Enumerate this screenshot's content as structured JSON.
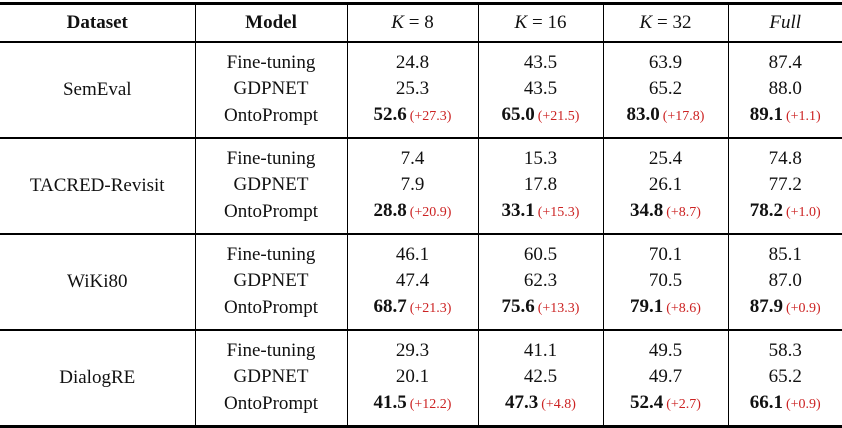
{
  "colors": {
    "delta_text": "#cc2222",
    "text": "#111111",
    "rule": "#000000",
    "background": "#ffffff"
  },
  "table": {
    "columns": [
      {
        "label": "Dataset"
      },
      {
        "label": "Model"
      },
      {
        "symbol": "K",
        "suffix": " = 8"
      },
      {
        "symbol": "K",
        "suffix": " = 16"
      },
      {
        "symbol": "K",
        "suffix": " = 32"
      },
      {
        "label": "Full"
      }
    ],
    "groups": [
      {
        "dataset": "SemEval",
        "rows": [
          {
            "model": "Fine-tuning",
            "v": [
              "24.8",
              "43.5",
              "63.9",
              "87.4"
            ]
          },
          {
            "model": "GDPNET",
            "v": [
              "25.3",
              "43.5",
              "65.2",
              "88.0"
            ]
          },
          {
            "model": "OntoPrompt",
            "v": [
              "52.6",
              "65.0",
              "83.0",
              "89.1"
            ],
            "d": [
              "(+27.3)",
              "(+21.5)",
              "(+17.8)",
              "(+1.1)"
            ]
          }
        ]
      },
      {
        "dataset": "TACRED-Revisit",
        "rows": [
          {
            "model": "Fine-tuning",
            "v": [
              "7.4",
              "15.3",
              "25.4",
              "74.8"
            ]
          },
          {
            "model": "GDPNET",
            "v": [
              "7.9",
              "17.8",
              "26.1",
              "77.2"
            ]
          },
          {
            "model": "OntoPrompt",
            "v": [
              "28.8",
              "33.1",
              "34.8",
              "78.2"
            ],
            "d": [
              "(+20.9)",
              "(+15.3)",
              "(+8.7)",
              "(+1.0)"
            ]
          }
        ]
      },
      {
        "dataset": "WiKi80",
        "rows": [
          {
            "model": "Fine-tuning",
            "v": [
              "46.1",
              "60.5",
              "70.1",
              "85.1"
            ]
          },
          {
            "model": "GDPNET",
            "v": [
              "47.4",
              "62.3",
              "70.5",
              "87.0"
            ]
          },
          {
            "model": "OntoPrompt",
            "v": [
              "68.7",
              "75.6",
              "79.1",
              "87.9"
            ],
            "d": [
              "(+21.3)",
              "(+13.3)",
              "(+8.6)",
              "(+0.9)"
            ]
          }
        ]
      },
      {
        "dataset": "DialogRE",
        "rows": [
          {
            "model": "Fine-tuning",
            "v": [
              "29.3",
              "41.1",
              "49.5",
              "58.3"
            ]
          },
          {
            "model": "GDPNET",
            "v": [
              "20.1",
              "42.5",
              "49.7",
              "65.2"
            ]
          },
          {
            "model": "OntoPrompt",
            "v": [
              "41.5",
              "47.3",
              "52.4",
              "66.1"
            ],
            "d": [
              "(+12.2)",
              "(+4.8)",
              "(+2.7)",
              "(+0.9)"
            ]
          }
        ]
      }
    ]
  },
  "chart_data": {
    "type": "table",
    "columns": [
      "Dataset",
      "Model",
      "K = 8",
      "K = 16",
      "K = 32",
      "Full"
    ],
    "rows": [
      [
        "SemEval",
        "Fine-tuning",
        "24.8",
        "43.5",
        "63.9",
        "87.4"
      ],
      [
        "SemEval",
        "GDPNET",
        "25.3",
        "43.5",
        "65.2",
        "88.0"
      ],
      [
        "SemEval",
        "OntoPrompt",
        "52.6 (+27.3)",
        "65.0 (+21.5)",
        "83.0 (+17.8)",
        "89.1 (+1.1)"
      ],
      [
        "TACRED-Revisit",
        "Fine-tuning",
        "7.4",
        "15.3",
        "25.4",
        "74.8"
      ],
      [
        "TACRED-Revisit",
        "GDPNET",
        "7.9",
        "17.8",
        "26.1",
        "77.2"
      ],
      [
        "TACRED-Revisit",
        "OntoPrompt",
        "28.8 (+20.9)",
        "33.1 (+15.3)",
        "34.8 (+8.7)",
        "78.2 (+1.0)"
      ],
      [
        "WiKi80",
        "Fine-tuning",
        "46.1",
        "60.5",
        "70.1",
        "85.1"
      ],
      [
        "WiKi80",
        "GDPNET",
        "47.4",
        "62.3",
        "70.5",
        "87.0"
      ],
      [
        "WiKi80",
        "OntoPrompt",
        "68.7 (+21.3)",
        "75.6 (+13.3)",
        "79.1 (+8.6)",
        "87.9 (+0.9)"
      ],
      [
        "DialogRE",
        "Fine-tuning",
        "29.3",
        "41.1",
        "49.5",
        "58.3"
      ],
      [
        "DialogRE",
        "GDPNET",
        "20.1",
        "42.5",
        "49.7",
        "65.2"
      ],
      [
        "DialogRE",
        "OntoPrompt",
        "41.5 (+12.2)",
        "47.3 (+4.8)",
        "52.4 (+2.7)",
        "66.1 (+0.9)"
      ]
    ]
  }
}
